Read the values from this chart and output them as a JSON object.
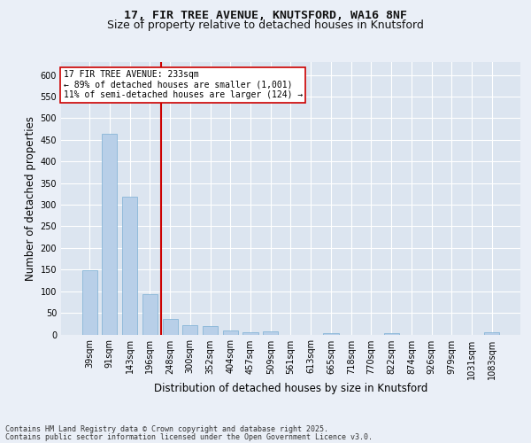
{
  "title1": "17, FIR TREE AVENUE, KNUTSFORD, WA16 8NF",
  "title2": "Size of property relative to detached houses in Knutsford",
  "xlabel": "Distribution of detached houses by size in Knutsford",
  "ylabel": "Number of detached properties",
  "categories": [
    "39sqm",
    "91sqm",
    "143sqm",
    "196sqm",
    "248sqm",
    "300sqm",
    "352sqm",
    "404sqm",
    "457sqm",
    "509sqm",
    "561sqm",
    "613sqm",
    "665sqm",
    "718sqm",
    "770sqm",
    "822sqm",
    "874sqm",
    "926sqm",
    "979sqm",
    "1031sqm",
    "1083sqm"
  ],
  "values": [
    148,
    465,
    318,
    93,
    35,
    22,
    20,
    10,
    5,
    7,
    0,
    0,
    4,
    0,
    0,
    4,
    0,
    0,
    0,
    0,
    5
  ],
  "bar_color": "#b8cfe8",
  "bar_edge_color": "#7aafd4",
  "vline_color": "#cc0000",
  "vline_x": 3.57,
  "annotation_text": "17 FIR TREE AVENUE: 233sqm\n← 89% of detached houses are smaller (1,001)\n11% of semi-detached houses are larger (124) →",
  "annotation_box_color": "#ffffff",
  "annotation_box_edge": "#cc0000",
  "ylim": [
    0,
    630
  ],
  "yticks": [
    0,
    50,
    100,
    150,
    200,
    250,
    300,
    350,
    400,
    450,
    500,
    550,
    600
  ],
  "footer1": "Contains HM Land Registry data © Crown copyright and database right 2025.",
  "footer2": "Contains public sector information licensed under the Open Government Licence v3.0.",
  "bg_color": "#eaeff7",
  "plot_bg_color": "#dce5f0",
  "grid_color": "#ffffff",
  "title_fontsize": 9.5,
  "subtitle_fontsize": 9,
  "axis_label_fontsize": 8.5,
  "tick_fontsize": 7,
  "footer_fontsize": 6,
  "ann_fontsize": 7
}
